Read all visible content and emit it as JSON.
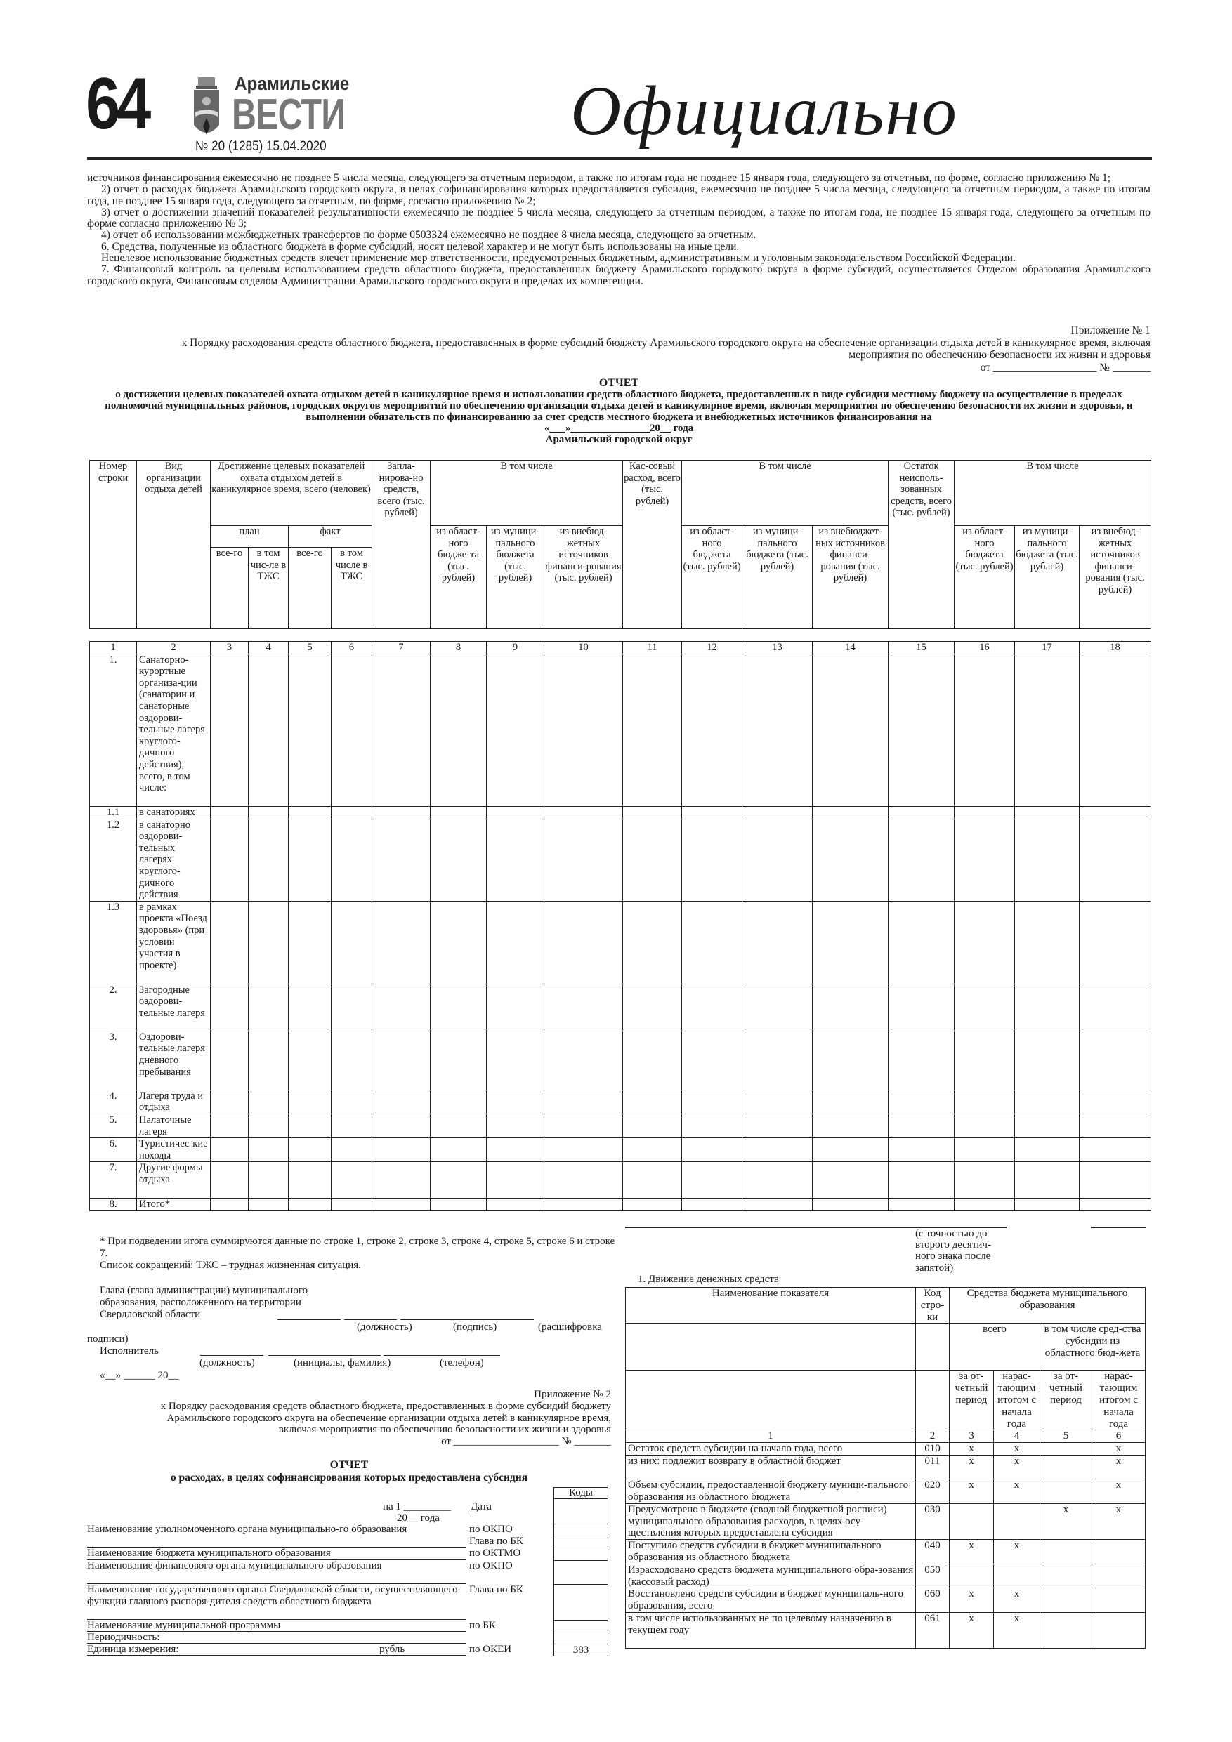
{
  "masthead": {
    "page_number": "64",
    "paper_name_line1": "Арамильские",
    "paper_name_line2": "ВЕСТИ",
    "issue": "№ 20 (1285) 15.04.2020",
    "section": "Официально"
  },
  "body_paragraphs": [
    "источников финансирования ежемесячно не позднее 5 числа месяца, следующего за отчетным периодом, а также по итогам года не позднее 15 января года, следующего за отчетным, по форме, согласно приложению № 1;",
    "2) отчет о расходах бюджета Арамильского городского округа, в целях софинансирования которых предоставляется субсидия, ежемесячно не позднее 5 числа месяца, следующего за отчетным периодом, а также по итогам года, не позднее 15 января года, следующего за отчетным, по форме, согласно приложению № 2;",
    "3) отчет о достижении значений показателей результативности ежемесячно не позднее 5 числа месяца, следующего за отчетным периодом, а также по итогам года, не позднее 15 января года, следующего за отчетным по форме согласно приложению № 3;",
    "4) отчет об использовании межбюджетных трансфертов по форме 0503324 ежемесячно не позднее 8 числа месяца, следующего за отчетным.",
    "6. Средства, полученные из областного бюджета в форме субсидий, носят целевой характер и не могут быть использованы на иные цели.",
    "Нецелевое использование бюджетных средств влечет применение мер ответственности, предусмотренных бюджетным, административным и уголовным законодательством Российской Федерации.",
    "7. Финансовый контроль за целевым использованием средств областного бюджета, предоставленных бюджету Арамильского городского округа в форме субсидий, осуществляется Отделом образования Арамильского городского округа, Финансовым отделом Администрации Арамильского городского округа в пределах их компетенции."
  ],
  "appendix1": {
    "title": "Приложение № 1",
    "line1": "к Порядку расходования средств областного бюджета, предоставленных в форме субсидий бюджету Арамильского городского округа на обеспечение организации отдыха детей в каникулярное время, включая",
    "line2": "мероприятия по обеспечению безопасности их жизни и здоровья",
    "line3": "от ___________________ № _______"
  },
  "report1": {
    "title": "ОТЧЕТ",
    "subtitle": "о достижении целевых показателей охвата отдыхом детей в каникулярное время и использовании средств областного бюджета, предоставленных в виде субсидии местному бюджету на осуществление в пределах полномочий муниципальных районов, городских округов мероприятий по обеспечению организации отдыха детей в каникулярное время, включая мероприятия по обеспечению безопасности их жизни и здоровья, и выполнении обязательств по финансированию за счет средств местного бюджета и внебюджетных источников финансирования на",
    "date": "«___»_______________20__ года",
    "municipality": "Арамильский городской округ",
    "headers": {
      "row_no": "Номер строки",
      "org_type": "Вид организации отдыха детей",
      "targets": "Достижение целевых показателей охвата отдыхом детей в каникулярное время, всего (человек)",
      "plan": "план",
      "fact": "факт",
      "total": "все-го",
      "tzhs_plan": "в том чис-ле в ТЖС",
      "tzhs_fact": "в том числе в ТЖС",
      "planned": "Запла-нирова-но средств, всего (тыс. рублей)",
      "incl": "В том числе",
      "c8": "из област-ного бюдже-та (тыс. рублей)",
      "c9": "из муници-пального бюджета (тыс. рублей)",
      "c10": "из внебюд-жетных источников финанси-рования (тыс. рублей)",
      "cash": "Кас-совый расход, всего (тыс. рублей)",
      "c12": "из област-ного бюджета (тыс. рублей)",
      "c13": "из муници-пального бюджета (тыс. рублей)",
      "c14": "из внебюджет-ных источников финанси-рования (тыс. рублей)",
      "remainder": "Остаток неисполь-зованных средств, всего (тыс. рублей)",
      "c16": "из област-ного бюджета (тыс. рублей)",
      "c17": "из муници-пального бюджета (тыс. рублей)",
      "c18": "из внебюд-жетных источников финанси-рования (тыс. рублей)"
    },
    "column_numbers": [
      "1",
      "2",
      "3",
      "4",
      "5",
      "6",
      "7",
      "8",
      "9",
      "10",
      "11",
      "12",
      "13",
      "14",
      "15",
      "16",
      "17",
      "18"
    ],
    "rows": [
      {
        "no": "1.",
        "name": "Санаторно-курортные организа-ции (санатории и санаторные оздорови-тельные лагеря круглого-дичного действия), всего, в том числе:"
      },
      {
        "no": "1.1",
        "name": "в санаториях"
      },
      {
        "no": "1.2",
        "name": "в санаторно оздорови-тельных лагерях круглого-дичного действия"
      },
      {
        "no": "1.3",
        "name": "в рамках проекта «Поезд здоровья» (при условии участия в проекте)"
      },
      {
        "no": "2.",
        "name": "Загородные оздорови-тельные лагеря"
      },
      {
        "no": "3.",
        "name": "Оздорови-тельные лагеря дневного пребывания"
      },
      {
        "no": "4.",
        "name": "Лагеря труда и отдыха"
      },
      {
        "no": "5.",
        "name": "Палаточные лагеря"
      },
      {
        "no": "6.",
        "name": "Туристичес-кие походы"
      },
      {
        "no": "7.",
        "name": "Другие формы отдыха"
      },
      {
        "no": "8.",
        "name": "Итого*"
      }
    ]
  },
  "footnotes": {
    "note1": "* При подведении итога суммируются данные по строке 1, строке 2, строке 3, строке 4, строке 5, строке 6 и строке 7.",
    "abbr": "Список сокращений: ТЖС – трудная жизненная ситуация.",
    "head_l1": "Глава (глава администрации) муниципального",
    "head_l2": "образования, расположенного на территории",
    "head_l3": "Свердловской области",
    "position": "(должность)",
    "signature": "(подпись)",
    "decoding": "(расшифровка",
    "decoding2": "подписи)",
    "executor": "Исполнитель",
    "executor_position": "(должность)",
    "initials": "(инициалы, фамилия)",
    "phone": "(телефон)",
    "date": "«__» ______ 20__"
  },
  "appendix2": {
    "title": "Приложение № 2",
    "line1": "к Порядку расходования средств областного бюджета, предоставленных в форме субсидий бюджету",
    "line2": "Арамильского городского округа на обеспечение организации отдыха детей в каникулярное время,",
    "line3": "включая мероприятия по обеспечению безопасности их жизни и здоровья",
    "line4": "от ____________________ № _______"
  },
  "report2": {
    "title": "ОТЧЕТ",
    "subtitle": "о расходах, в целях софинансирования которых предоставлена субсидия",
    "codes_header": "Коды",
    "date_line1": "на 1 _________",
    "date_line2": "20__ года",
    "date_label": "Дата",
    "rows": [
      {
        "name": "Наименование уполномоченного органа муниципально-го образования",
        "codes": [
          "по ОКПО",
          "Глава по БК"
        ],
        "values": [
          "",
          ""
        ]
      },
      {
        "name": "Наименование бюджета муниципального образования",
        "codes": [
          "по ОКТМО"
        ],
        "values": [
          ""
        ]
      },
      {
        "name": "Наименование финансового органа муниципального образования",
        "codes": [
          "по ОКПО"
        ],
        "values": [
          ""
        ]
      },
      {
        "name": "Наименование государственного органа Свердловской области, осуществляющего функции главного распоря-дителя средств областного бюджета",
        "codes": [
          "Глава по БК"
        ],
        "values": [
          ""
        ]
      },
      {
        "name": "Наименование муниципальной программы",
        "codes": [
          "по БК"
        ],
        "values": [
          ""
        ]
      },
      {
        "name": "Периодичность:",
        "codes": [
          ""
        ],
        "values": [
          ""
        ]
      },
      {
        "name": "Единица измерения:",
        "unit": "рубль",
        "codes": [
          "по ОКЕИ"
        ],
        "values": [
          "383"
        ]
      }
    ]
  },
  "cash_flow": {
    "precision_note": "(с точностью до второго десятич-ного знака после запятой)",
    "title": "1. Движение денежных средств",
    "headers": {
      "indicator": "Наименование показателя",
      "code": "Код стро-ки",
      "funds": "Средства бюджета муниципального образования",
      "total": "всего",
      "incl_subsidy": "в том числе сред-ства субсидии из областного бюд-жета",
      "period": "за от-четный период",
      "cumulative": "нарас-тающим итогом с начала года"
    },
    "column_numbers": [
      "1",
      "2",
      "3",
      "4",
      "5",
      "6"
    ],
    "rows": [
      {
        "name": "Остаток средств субсидии на начало года, всего",
        "code": "010",
        "cells": [
          "x",
          "x",
          "",
          "x"
        ]
      },
      {
        "name": "из них: подлежит возврату в областной бюджет",
        "code": "011",
        "cells": [
          "x",
          "x",
          "",
          "x"
        ]
      },
      {
        "name": "Объем субсидии, предоставленной бюджету муници-пального образования из областного бюджета",
        "code": "020",
        "cells": [
          "x",
          "x",
          "",
          "x"
        ]
      },
      {
        "name": "Предусмотрено в бюджете (сводной бюджетной росписи) муниципального образования расходов, в целях осу-ществления которых предоставлена субсидия",
        "code": "030",
        "cells": [
          "",
          "",
          "x",
          "x"
        ]
      },
      {
        "name": "Поступило средств субсидии в бюджет муниципального образования из областного бюджета",
        "code": "040",
        "cells": [
          "x",
          "x",
          "",
          ""
        ]
      },
      {
        "name": "Израсходовано средств бюджета муниципального обра-зования (кассовый расход)",
        "code": "050",
        "cells": [
          "",
          "",
          "",
          ""
        ]
      },
      {
        "name": "Восстановлено средств субсидии в бюджет муниципаль-ного образования, всего",
        "code": "060",
        "cells": [
          "x",
          "x",
          "",
          ""
        ]
      },
      {
        "name": "в том числе использованных не по целевому назначению в текущем году",
        "code": "061",
        "cells": [
          "x",
          "x",
          "",
          ""
        ]
      }
    ]
  }
}
